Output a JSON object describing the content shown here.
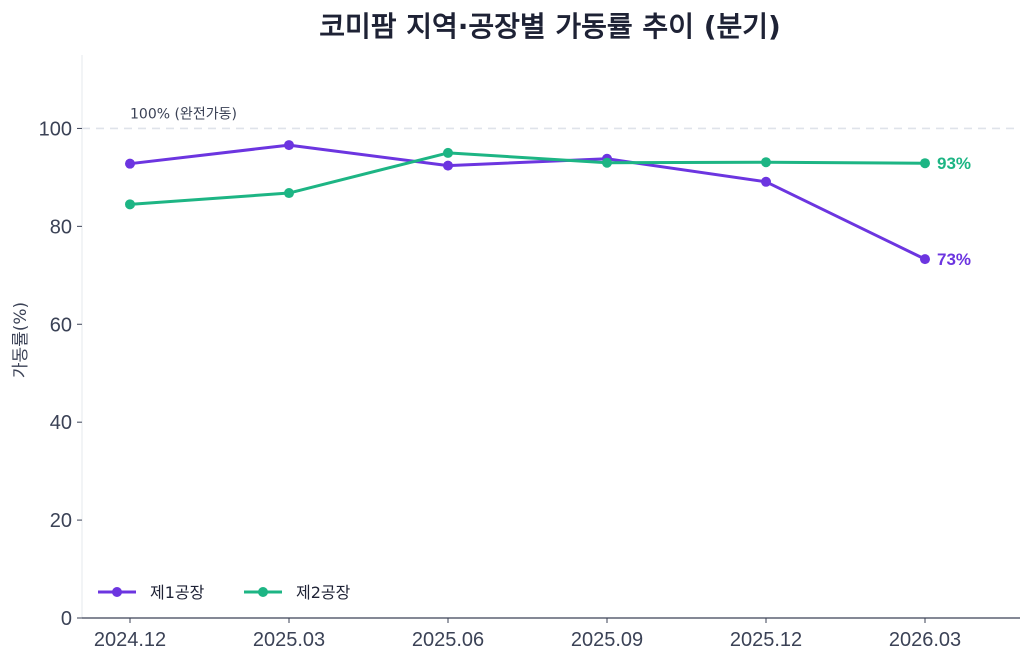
{
  "chart_data": {
    "type": "line",
    "title": "코미팜 지역·공장별 가동률 추이 (분기)",
    "xlabel": "",
    "ylabel": "가동률(%)",
    "ylim": [
      0,
      115
    ],
    "yticks": [
      0,
      20,
      40,
      60,
      80,
      100
    ],
    "categories": [
      "2024.12",
      "2025.03",
      "2025.06",
      "2025.09",
      "2025.12",
      "2026.03"
    ],
    "series": [
      {
        "name": "제1공장",
        "color": "#6c35e0",
        "values": [
          92.8,
          96.6,
          92.4,
          93.8,
          89.1,
          73.3
        ],
        "end_label": "73%"
      },
      {
        "name": "제2공장",
        "color": "#1db584",
        "values": [
          84.5,
          86.8,
          95.0,
          93.0,
          93.1,
          92.9
        ],
        "end_label": "93%"
      }
    ],
    "reference_line": {
      "value": 100,
      "label": "100% (완전가동)",
      "color": "#dfe3ea"
    },
    "grid": false,
    "legend": "bottom-left"
  }
}
